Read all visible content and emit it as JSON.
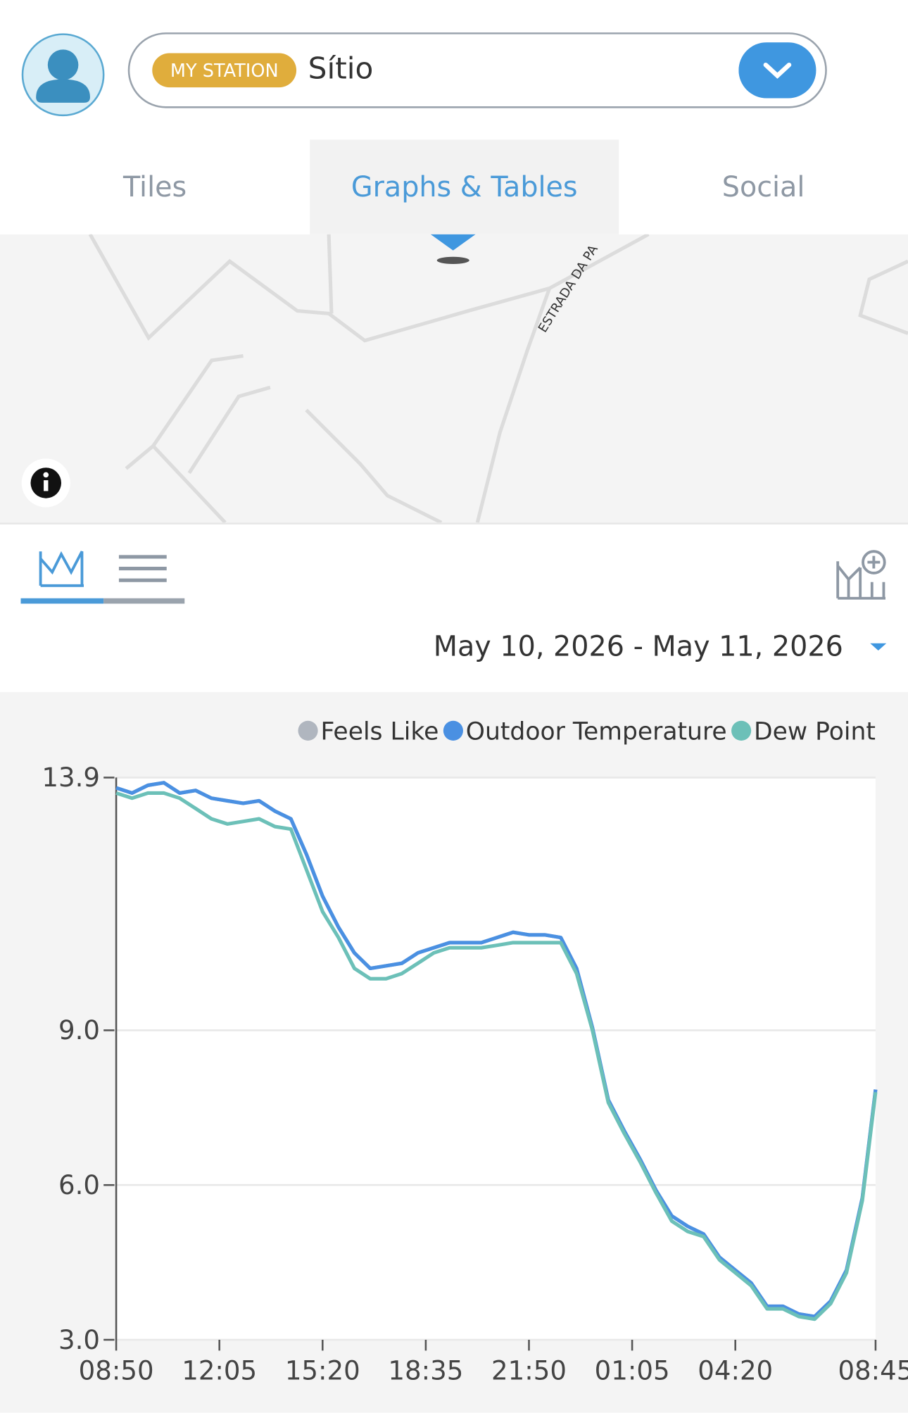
{
  "header": {
    "badge": "MY STATION",
    "station": "Sítio"
  },
  "tabs": [
    "Tiles",
    "Graphs & Tables",
    "Social"
  ],
  "map": {
    "road_label": "ESTRADA DA PA"
  },
  "date_range": "May 10, 2026 - May 11, 2026",
  "chart_data": {
    "type": "line",
    "x": [
      "08:50",
      "09:20",
      "09:50",
      "10:20",
      "10:50",
      "11:20",
      "11:50",
      "12:20",
      "12:50",
      "13:20",
      "13:50",
      "14:20",
      "14:50",
      "15:20",
      "15:50",
      "16:20",
      "16:50",
      "17:20",
      "17:50",
      "18:20",
      "18:50",
      "19:20",
      "19:50",
      "20:20",
      "20:50",
      "21:20",
      "21:50",
      "22:20",
      "22:50",
      "23:20",
      "23:50",
      "00:20",
      "00:50",
      "01:20",
      "01:50",
      "02:20",
      "02:50",
      "03:20",
      "03:50",
      "04:20",
      "04:50",
      "05:20",
      "05:50",
      "06:20",
      "06:50",
      "07:20",
      "07:50",
      "08:20",
      "08:45"
    ],
    "series": [
      {
        "name": "Feels Like",
        "color": "#b0b6bf",
        "values": [
          13.7,
          13.6,
          13.75,
          13.8,
          13.6,
          13.65,
          13.5,
          13.45,
          13.4,
          13.45,
          13.25,
          13.1,
          12.4,
          11.6,
          11.0,
          10.5,
          10.2,
          10.25,
          10.3,
          10.5,
          10.6,
          10.7,
          10.7,
          10.7,
          10.8,
          10.9,
          10.85,
          10.85,
          10.8,
          10.2,
          9.05,
          7.65,
          7.05,
          6.5,
          5.9,
          5.4,
          5.2,
          5.05,
          4.6,
          4.35,
          4.1,
          3.65,
          3.65,
          3.5,
          3.45,
          3.75,
          4.35,
          5.75,
          7.85
        ]
      },
      {
        "name": "Outdoor Temperature",
        "color": "#4a90e2",
        "values": [
          13.7,
          13.6,
          13.75,
          13.8,
          13.6,
          13.65,
          13.5,
          13.45,
          13.4,
          13.45,
          13.25,
          13.1,
          12.4,
          11.6,
          11.0,
          10.5,
          10.2,
          10.25,
          10.3,
          10.5,
          10.6,
          10.7,
          10.7,
          10.7,
          10.8,
          10.9,
          10.85,
          10.85,
          10.8,
          10.2,
          9.05,
          7.65,
          7.05,
          6.5,
          5.9,
          5.4,
          5.2,
          5.05,
          4.6,
          4.35,
          4.1,
          3.65,
          3.65,
          3.5,
          3.45,
          3.75,
          4.35,
          5.75,
          7.85
        ]
      },
      {
        "name": "Dew Point",
        "color": "#6cc0b8",
        "values": [
          13.6,
          13.5,
          13.6,
          13.6,
          13.5,
          13.3,
          13.1,
          13.0,
          13.05,
          13.1,
          12.95,
          12.9,
          12.1,
          11.3,
          10.8,
          10.2,
          10.0,
          10.0,
          10.1,
          10.3,
          10.5,
          10.6,
          10.6,
          10.6,
          10.65,
          10.7,
          10.7,
          10.7,
          10.7,
          10.1,
          9.0,
          7.6,
          7.0,
          6.45,
          5.85,
          5.3,
          5.1,
          5.0,
          4.55,
          4.3,
          4.05,
          3.6,
          3.6,
          3.45,
          3.4,
          3.7,
          4.3,
          5.7,
          7.8
        ]
      }
    ],
    "ylim": [
      3,
      13.9
    ],
    "yticks": [
      {
        "value": 3,
        "label": "3.0"
      },
      {
        "value": 6,
        "label": "6.0"
      },
      {
        "value": 9,
        "label": "9.0"
      },
      13.9
    ],
    "xticks": [
      "08:50",
      "12:05",
      "15:20",
      "18:35",
      "21:50",
      "01:05",
      "04:20",
      "08:45"
    ],
    "grid": true
  }
}
